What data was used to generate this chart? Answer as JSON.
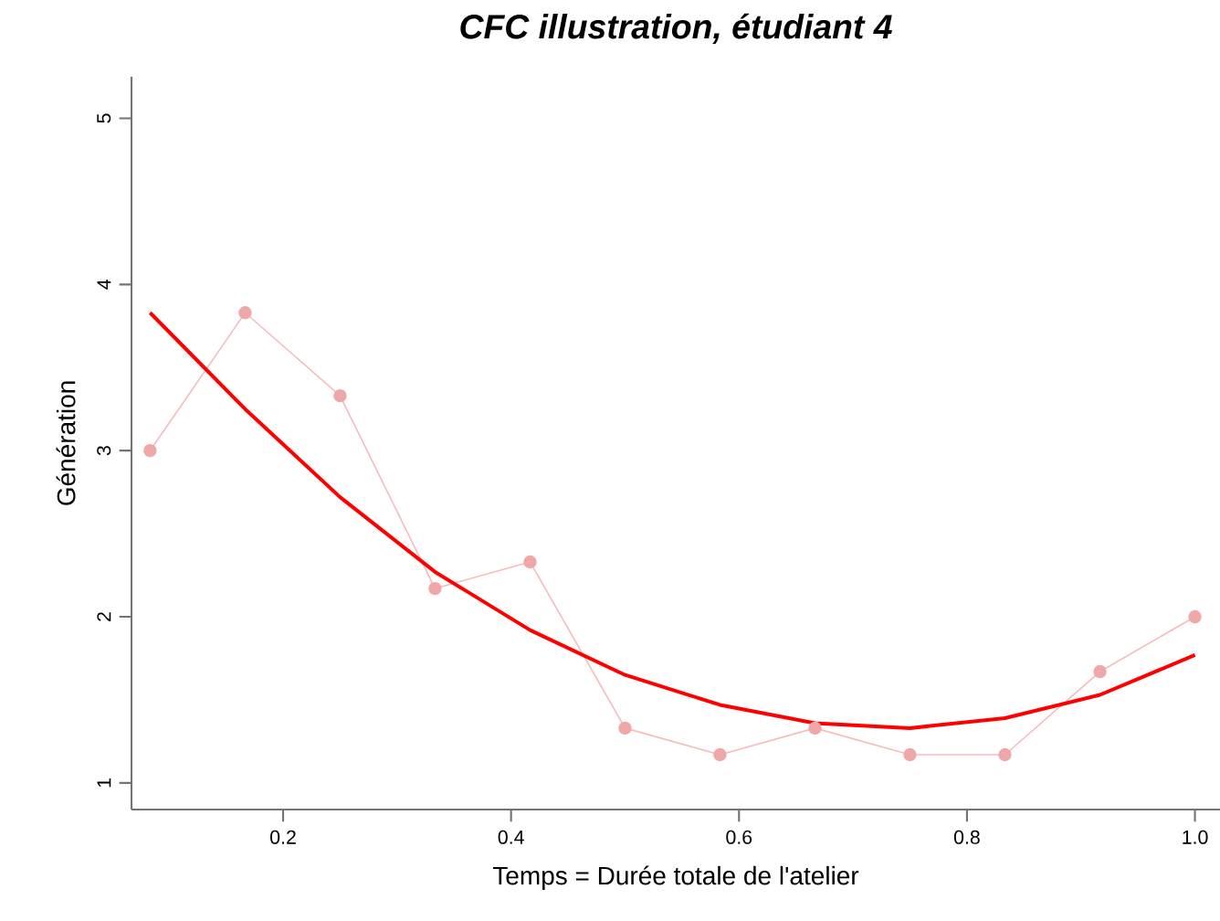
{
  "chart_data": {
    "type": "line",
    "title": "CFC illustration, étudiant 4",
    "xlabel": "Temps = Durée totale de l'atelier",
    "ylabel": "Génération",
    "x": [
      0.0833,
      0.1667,
      0.25,
      0.3333,
      0.4167,
      0.5,
      0.5833,
      0.6667,
      0.75,
      0.8333,
      0.9167,
      1.0
    ],
    "series": [
      {
        "color": "#f4bcbc",
        "marker": "circle",
        "values": [
          3.0,
          3.83,
          3.33,
          2.17,
          2.33,
          1.33,
          1.17,
          1.33,
          1.17,
          1.17,
          1.67,
          2.0
        ]
      },
      {
        "color": "#ff0000",
        "marker": "none",
        "values": [
          3.83,
          3.25,
          2.72,
          2.27,
          1.92,
          1.65,
          1.47,
          1.36,
          1.33,
          1.39,
          1.53,
          1.77
        ]
      }
    ],
    "xlim": [
      0.067,
      1.022
    ],
    "ylim": [
      0.84,
      5.25
    ],
    "xticks": [
      0.2,
      0.4,
      0.6,
      0.8,
      {
        "value": 1.0,
        "label": "1.0"
      }
    ],
    "yticks": [
      1,
      2,
      3,
      4,
      5
    ],
    "grid": false
  }
}
